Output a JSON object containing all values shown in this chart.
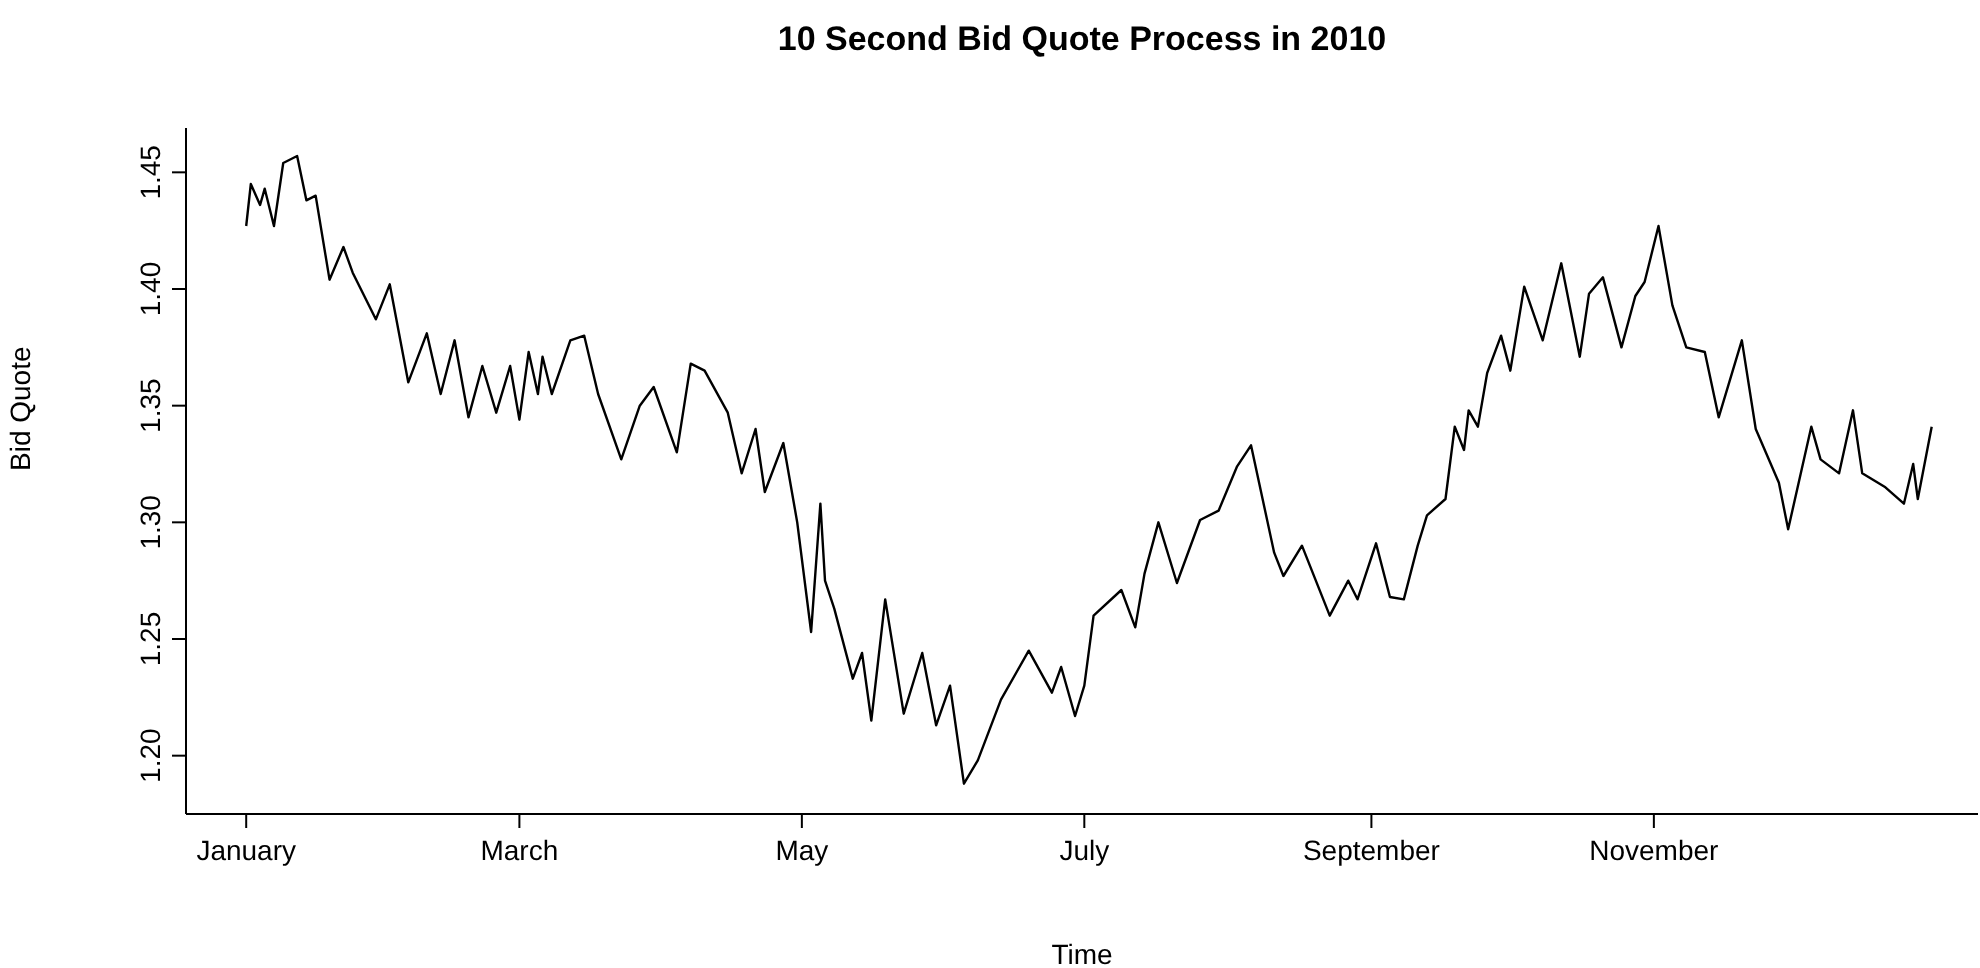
{
  "chart_data": {
    "type": "line",
    "title": "10 Second Bid Quote Process in 2010",
    "xlabel": "Time",
    "ylabel": "Bid Quote",
    "grid": false,
    "legend": false,
    "marker": "none",
    "line_style": "solid",
    "xlim": [
      "2009-12-19",
      "2011-01-10"
    ],
    "xticks": [
      {
        "value": "2010-01-01",
        "label": "January"
      },
      {
        "value": "2010-03-01",
        "label": "March"
      },
      {
        "value": "2010-05-01",
        "label": "May"
      },
      {
        "value": "2010-07-01",
        "label": "July"
      },
      {
        "value": "2010-09-01",
        "label": "September"
      },
      {
        "value": "2010-11-01",
        "label": "November"
      }
    ],
    "ylim": [
      1.175,
      1.469
    ],
    "yticks": [
      {
        "value": 1.2,
        "label": "1.20"
      },
      1.25,
      {
        "value": 1.3,
        "label": "1.30"
      },
      1.35,
      {
        "value": 1.4,
        "label": "1.40"
      },
      1.45
    ],
    "x": [
      "2010-01-01",
      "2010-01-02",
      "2010-01-04",
      "2010-01-05",
      "2010-01-07",
      "2010-01-09",
      "2010-01-12",
      "2010-01-14",
      "2010-01-16",
      "2010-01-19",
      "2010-01-22",
      "2010-01-24",
      "2010-01-29",
      "2010-02-01",
      "2010-02-05",
      "2010-02-09",
      "2010-02-12",
      "2010-02-15",
      "2010-02-18",
      "2010-02-21",
      "2010-02-24",
      "2010-02-27",
      "2010-03-01",
      "2010-03-03",
      "2010-03-05",
      "2010-03-06",
      "2010-03-08",
      "2010-03-12",
      "2010-03-15",
      "2010-03-18",
      "2010-03-23",
      "2010-03-27",
      "2010-03-30",
      "2010-04-04",
      "2010-04-07",
      "2010-04-10",
      "2010-04-15",
      "2010-04-18",
      "2010-04-21",
      "2010-04-23",
      "2010-04-27",
      "2010-04-30",
      "2010-05-03",
      "2010-05-05",
      "2010-05-06",
      "2010-05-08",
      "2010-05-12",
      "2010-05-14",
      "2010-05-16",
      "2010-05-19",
      "2010-05-23",
      "2010-05-27",
      "2010-05-30",
      "2010-06-02",
      "2010-06-05",
      "2010-06-08",
      "2010-06-13",
      "2010-06-19",
      "2010-06-24",
      "2010-06-26",
      "2010-06-29",
      "2010-07-01",
      "2010-07-03",
      "2010-07-09",
      "2010-07-12",
      "2010-07-14",
      "2010-07-17",
      "2010-07-21",
      "2010-07-26",
      "2010-07-30",
      "2010-08-03",
      "2010-08-06",
      "2010-08-11",
      "2010-08-13",
      "2010-08-17",
      "2010-08-20",
      "2010-08-23",
      "2010-08-27",
      "2010-08-29",
      "2010-09-02",
      "2010-09-05",
      "2010-09-08",
      "2010-09-11",
      "2010-09-13",
      "2010-09-17",
      "2010-09-19",
      "2010-09-21",
      "2010-09-22",
      "2010-09-24",
      "2010-09-26",
      "2010-09-29",
      "2010-10-01",
      "2010-10-04",
      "2010-10-08",
      "2010-10-12",
      "2010-10-16",
      "2010-10-18",
      "2010-10-21",
      "2010-10-25",
      "2010-10-28",
      "2010-10-30",
      "2010-11-02",
      "2010-11-05",
      "2010-11-08",
      "2010-11-12",
      "2010-11-15",
      "2010-11-20",
      "2010-11-23",
      "2010-11-28",
      "2010-11-30",
      "2010-12-05",
      "2010-12-07",
      "2010-12-11",
      "2010-12-14",
      "2010-12-16",
      "2010-12-21",
      "2010-12-25",
      "2010-12-27",
      "2010-12-28",
      "2010-12-31"
    ],
    "series": [
      {
        "color": "#000000",
        "values": [
          1.427,
          1.445,
          1.436,
          1.443,
          1.427,
          1.454,
          1.457,
          1.438,
          1.44,
          1.404,
          1.418,
          1.407,
          1.387,
          1.402,
          1.36,
          1.381,
          1.355,
          1.378,
          1.345,
          1.367,
          1.347,
          1.367,
          1.344,
          1.373,
          1.355,
          1.371,
          1.355,
          1.378,
          1.38,
          1.355,
          1.327,
          1.35,
          1.358,
          1.33,
          1.368,
          1.365,
          1.347,
          1.321,
          1.34,
          1.313,
          1.334,
          1.3,
          1.253,
          1.308,
          1.275,
          1.263,
          1.233,
          1.244,
          1.215,
          1.267,
          1.218,
          1.244,
          1.213,
          1.23,
          1.188,
          1.198,
          1.224,
          1.245,
          1.227,
          1.238,
          1.217,
          1.23,
          1.26,
          1.271,
          1.255,
          1.278,
          1.3,
          1.274,
          1.301,
          1.305,
          1.324,
          1.333,
          1.287,
          1.277,
          1.29,
          1.275,
          1.26,
          1.275,
          1.267,
          1.291,
          1.268,
          1.267,
          1.29,
          1.303,
          1.31,
          1.341,
          1.331,
          1.348,
          1.341,
          1.364,
          1.38,
          1.365,
          1.401,
          1.378,
          1.411,
          1.371,
          1.398,
          1.405,
          1.375,
          1.397,
          1.403,
          1.427,
          1.393,
          1.375,
          1.373,
          1.345,
          1.378,
          1.34,
          1.317,
          1.297,
          1.341,
          1.327,
          1.321,
          1.348,
          1.321,
          1.315,
          1.308,
          1.325,
          1.31,
          1.341
        ]
      }
    ]
  }
}
